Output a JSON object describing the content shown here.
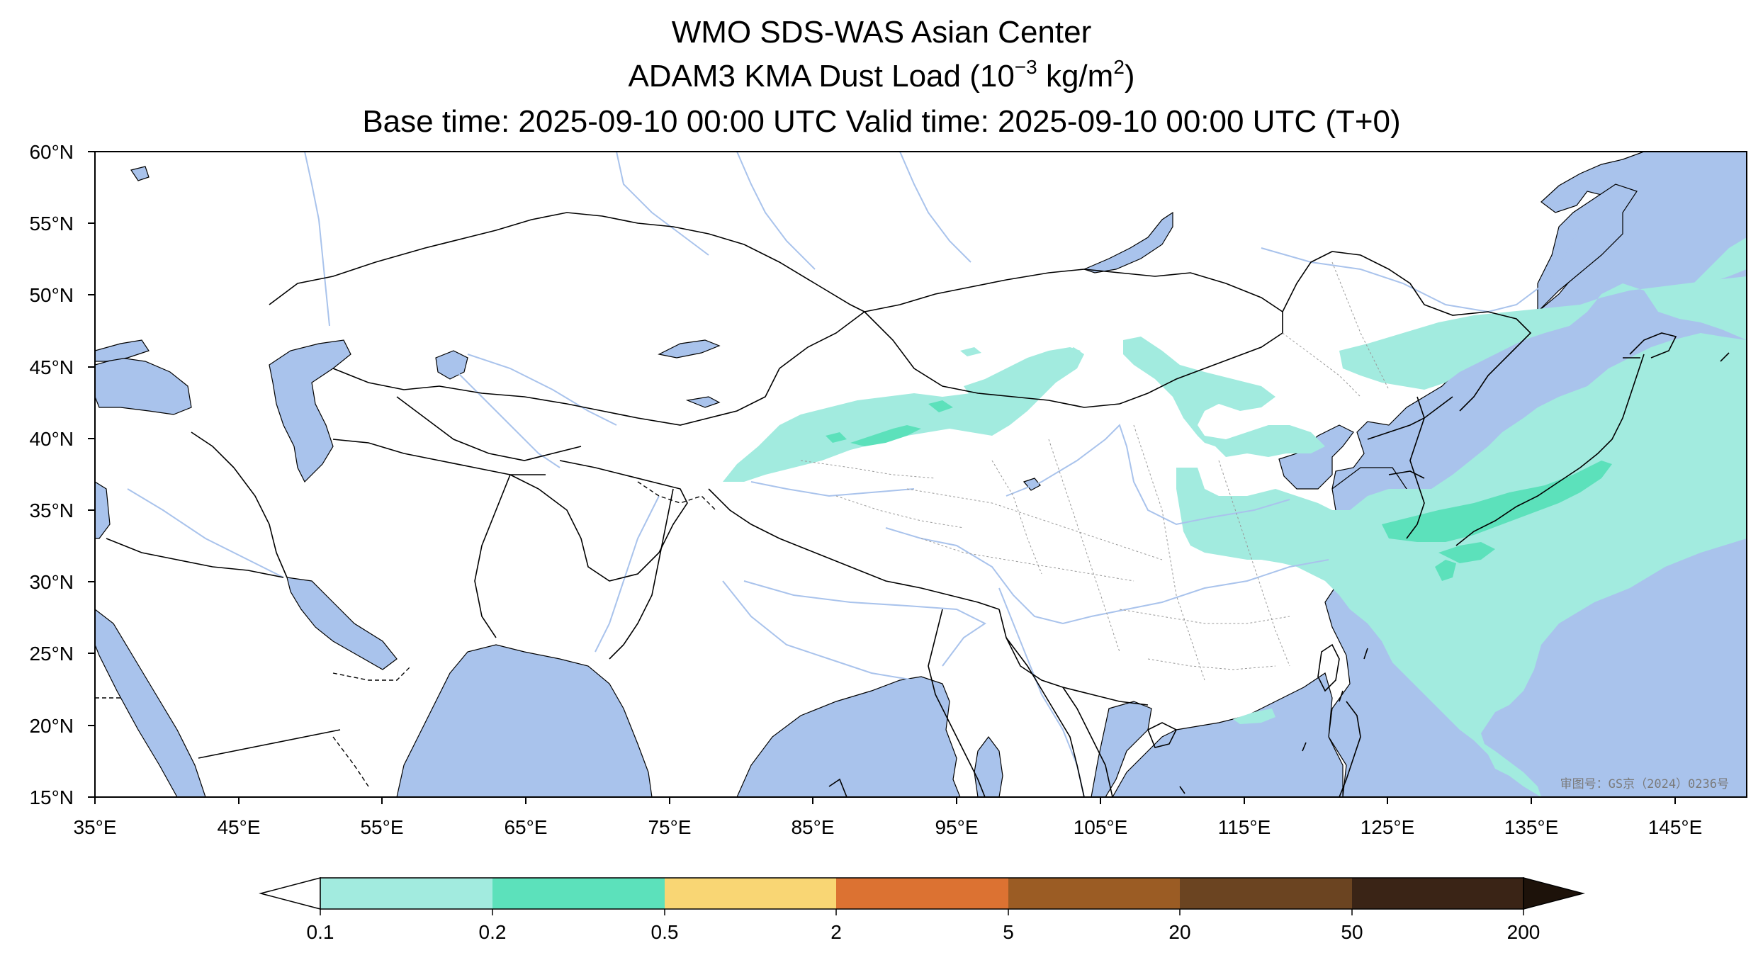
{
  "title": {
    "line1": "WMO SDS-WAS Asian Center",
    "line2_prefix": "ADAM3 KMA Dust Load (10",
    "line2_exp1": "−3",
    "line2_mid": " kg/m",
    "line2_exp2": "2",
    "line2_suffix": ")",
    "line3": "Base time: 2025-09-10 00:00 UTC Valid time: 2025-09-10 00:00 UTC (T+0)"
  },
  "map": {
    "lon_range": [
      35,
      150
    ],
    "lat_range": [
      15,
      60
    ],
    "lat_ticks": [
      "60°N",
      "55°N",
      "50°N",
      "45°N",
      "40°N",
      "35°N",
      "30°N",
      "25°N",
      "20°N",
      "15°N"
    ],
    "lon_ticks": [
      "35°E",
      "45°E",
      "55°E",
      "65°E",
      "75°E",
      "85°E",
      "95°E",
      "105°E",
      "115°E",
      "125°E",
      "135°E",
      "145°E"
    ],
    "watermark": "审图号：GS京（2024）0236号",
    "colors": {
      "ocean": "#a9c3ec",
      "land": "#ffffff",
      "rivers": "#a9c3ec",
      "borders": "#000000"
    }
  },
  "colorbar": {
    "ticks": [
      "0.1",
      "0.2",
      "0.5",
      "2",
      "5",
      "20",
      "50",
      "200"
    ],
    "colors": [
      "#a2ebdf",
      "#5ce1bb",
      "#f9d674",
      "#dc7232",
      "#9b5c24",
      "#6b4421",
      "#3a2416"
    ],
    "under_color": "#ffffff",
    "over_color": "#1d120a"
  }
}
